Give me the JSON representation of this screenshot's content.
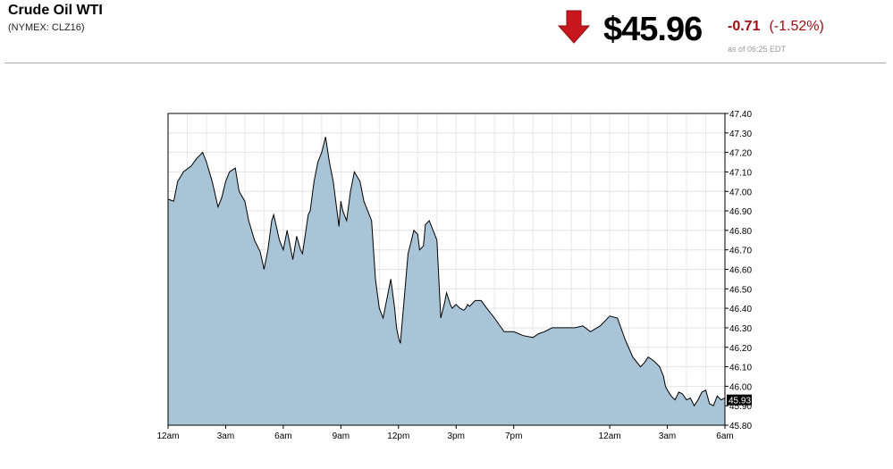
{
  "header": {
    "title": "Crude Oil WTI",
    "symbol": "(NYMEX: CLZ16)",
    "price": "$45.96",
    "change": "-0.71",
    "change_pct": "(-1.52%)",
    "as_of": "as of 06:25 EDT",
    "arrow_icon": "down-arrow-icon",
    "arrow_color": "#c8161d",
    "change_color": "#a50b12"
  },
  "chart_data": {
    "type": "area",
    "fill_color": "#a9c4d7",
    "line_color": "#000000",
    "grid": true,
    "xlabel": "",
    "ylabel": "",
    "ylim": [
      45.8,
      47.4
    ],
    "xlim": [
      0,
      29
    ],
    "x_ticks": [
      {
        "x": 0,
        "label": "12am"
      },
      {
        "x": 3,
        "label": "3am"
      },
      {
        "x": 6,
        "label": "6am"
      },
      {
        "x": 9,
        "label": "9am"
      },
      {
        "x": 12,
        "label": "12pm"
      },
      {
        "x": 15,
        "label": "3pm"
      },
      {
        "x": 18,
        "label": "7pm"
      },
      {
        "x": 23,
        "label": "12am"
      },
      {
        "x": 26,
        "label": "3am"
      },
      {
        "x": 29,
        "label": "6am"
      }
    ],
    "y_ticks": [
      "47.40",
      "47.30",
      "47.20",
      "47.10",
      "47.00",
      "46.90",
      "46.80",
      "46.70",
      "46.60",
      "46.50",
      "46.40",
      "46.30",
      "46.20",
      "46.10",
      "46.00",
      "45.90",
      "45.80"
    ],
    "last_value_label": "45.93",
    "last_value": 45.93,
    "series": [
      {
        "x": [
          0,
          0.3,
          0.5,
          0.8,
          1.2,
          1.5,
          1.8,
          2.0,
          2.3,
          2.6,
          2.8,
          3.0,
          3.2,
          3.5,
          3.7,
          4.0,
          4.2,
          4.5,
          4.8,
          5.0,
          5.2,
          5.4,
          5.5,
          5.8,
          6.0,
          6.2,
          6.5,
          6.7,
          6.9,
          7.0,
          7.3,
          7.4,
          7.6,
          7.8,
          8.0,
          8.2,
          8.4,
          8.6,
          8.8,
          8.9,
          9.0,
          9.1,
          9.3,
          9.5,
          9.7,
          10.0,
          10.2,
          10.4,
          10.6,
          10.8,
          11.0,
          11.2,
          11.4,
          11.6,
          11.8,
          11.9,
          12.0,
          12.1,
          12.3,
          12.5,
          12.6,
          12.8,
          13.0,
          13.1,
          13.3,
          13.4,
          13.6,
          13.8,
          14.0,
          14.2,
          14.4,
          14.5,
          14.7,
          14.8,
          15.0,
          15.2,
          15.4,
          15.5,
          15.6,
          15.7,
          16.0,
          16.3,
          16.6,
          17.0,
          17.5,
          18.0,
          18.5,
          19.0,
          19.3,
          19.6,
          20.0,
          20.4,
          20.8,
          21.2,
          21.6,
          22.0,
          22.5,
          23.0,
          23.4,
          23.8,
          24.2,
          24.6,
          24.8,
          25.0,
          25.3,
          25.6,
          25.8,
          25.9,
          26.0,
          26.2,
          26.4,
          26.6,
          26.8,
          27.0,
          27.2,
          27.4,
          27.6,
          27.8,
          28.0,
          28.2,
          28.4,
          28.6,
          28.8,
          29.0
        ],
        "y": [
          46.96,
          46.95,
          47.05,
          47.1,
          47.13,
          47.17,
          47.2,
          47.15,
          47.05,
          46.92,
          46.97,
          47.05,
          47.1,
          47.12,
          47.0,
          46.95,
          46.85,
          46.75,
          46.69,
          46.6,
          46.7,
          46.85,
          46.88,
          46.75,
          46.7,
          46.8,
          46.65,
          46.77,
          46.7,
          46.68,
          46.88,
          46.9,
          47.05,
          47.15,
          47.2,
          47.28,
          47.15,
          47.05,
          46.9,
          46.82,
          46.95,
          46.9,
          46.85,
          47.0,
          47.1,
          47.05,
          46.95,
          46.9,
          46.85,
          46.55,
          46.4,
          46.35,
          46.45,
          46.55,
          46.4,
          46.3,
          46.25,
          46.22,
          46.45,
          46.68,
          46.72,
          46.8,
          46.78,
          46.7,
          46.72,
          46.83,
          46.85,
          46.8,
          46.75,
          46.35,
          46.43,
          46.48,
          46.42,
          46.4,
          46.42,
          46.4,
          46.39,
          46.4,
          46.42,
          46.41,
          46.44,
          46.44,
          46.4,
          46.35,
          46.28,
          46.28,
          46.26,
          46.25,
          46.27,
          46.28,
          46.3,
          46.3,
          46.3,
          46.3,
          46.31,
          46.28,
          46.31,
          46.36,
          46.35,
          46.24,
          46.15,
          46.1,
          46.12,
          46.15,
          46.13,
          46.1,
          46.05,
          46.0,
          45.98,
          45.95,
          45.93,
          45.97,
          45.96,
          45.93,
          45.94,
          45.9,
          45.93,
          45.97,
          45.98,
          45.91,
          45.9,
          45.95,
          45.93,
          45.94
        ]
      }
    ]
  }
}
